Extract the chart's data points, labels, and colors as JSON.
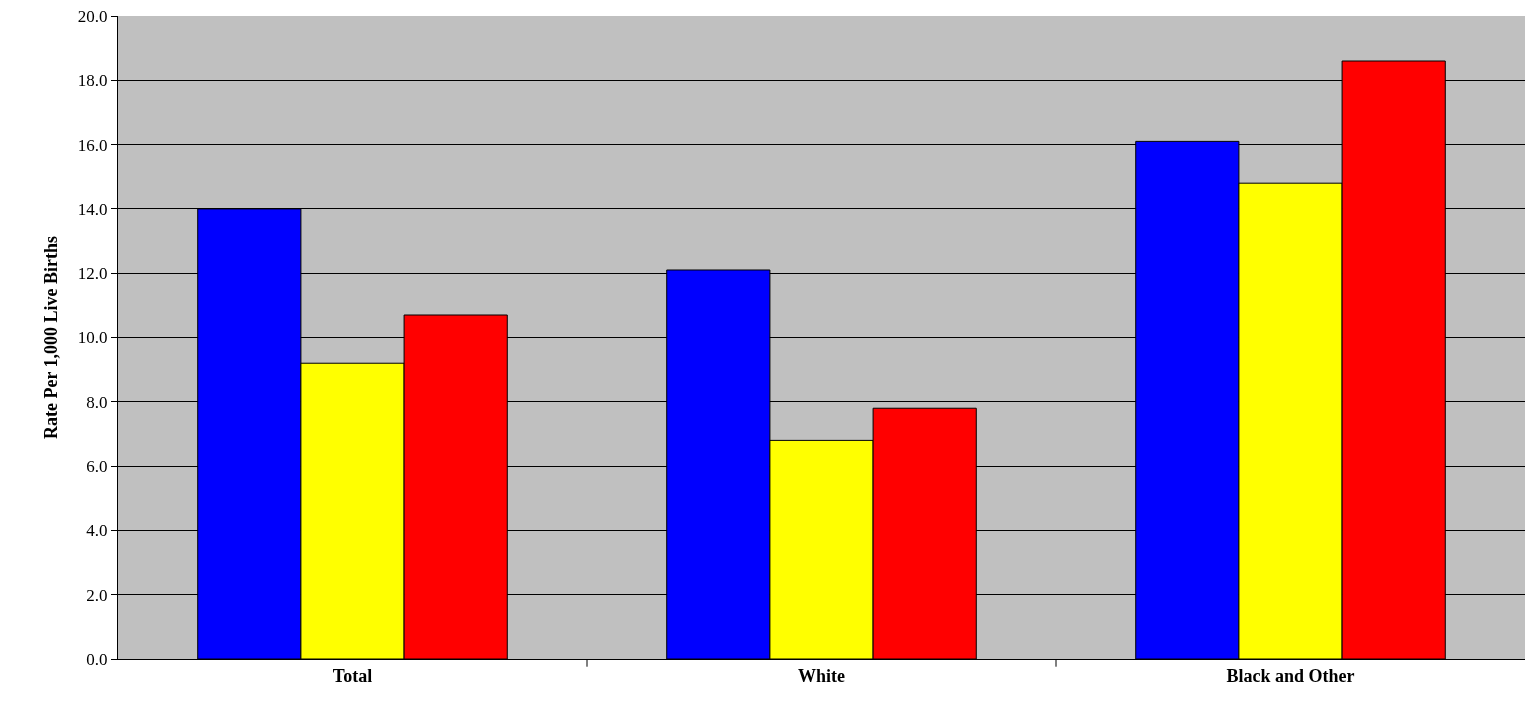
{
  "chart_data": {
    "type": "bar",
    "ylabel": "Rate Per 1,000 Live Births",
    "categories": [
      "Total",
      "White",
      "Black and Other"
    ],
    "series": [
      {
        "color": "#0000ff",
        "values": [
          14.0,
          12.1,
          16.1
        ]
      },
      {
        "color": "#ffff00",
        "values": [
          9.2,
          6.8,
          14.8
        ]
      },
      {
        "color": "#ff0000",
        "values": [
          10.7,
          7.8,
          18.6
        ]
      }
    ],
    "ylim": [
      0,
      20
    ],
    "yticks": [
      {
        "value": 0,
        "label": "0.0"
      },
      {
        "value": 2,
        "label": "2.0"
      },
      {
        "value": 4,
        "label": "4.0"
      },
      {
        "value": 6,
        "label": "6.0"
      },
      {
        "value": 8,
        "label": "8.0"
      },
      {
        "value": 10,
        "label": "10.0"
      },
      {
        "value": 12,
        "label": "12.0"
      },
      {
        "value": 14,
        "label": "14.0"
      },
      {
        "value": 16,
        "label": "16.0"
      },
      {
        "value": 18,
        "label": "18.0"
      },
      {
        "value": 20,
        "label": "20.0"
      }
    ],
    "grid": "y"
  }
}
